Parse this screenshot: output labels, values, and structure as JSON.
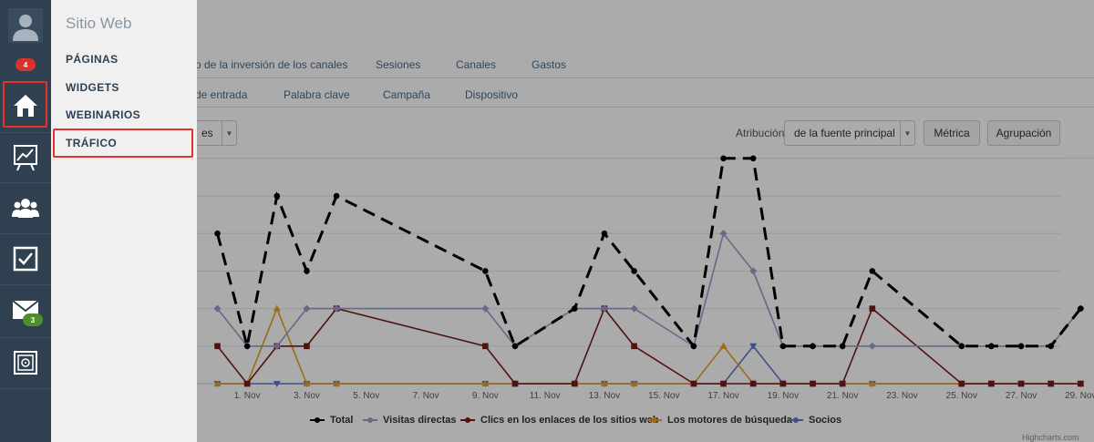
{
  "rail": {
    "badges": {
      "notifications": "4",
      "messages": "3"
    },
    "items": [
      "avatar",
      "home",
      "reports",
      "contacts",
      "tasks",
      "email",
      "vault"
    ]
  },
  "flyout": {
    "title": "Sitio Web",
    "items": [
      "PÁGINAS",
      "WIDGETS",
      "WEBINARIOS",
      "TRÁFICO"
    ],
    "highlighted": "TRÁFICO"
  },
  "tabs_row1": [
    "o de la inversión de los canales",
    "Sesiones",
    "Canales",
    "Gastos"
  ],
  "tabs_row2": [
    "de entrada",
    "Palabra clave",
    "Campaña",
    "Dispositivo"
  ],
  "controls": {
    "period_select": "es",
    "attribution_label": "Atribución",
    "attribution_value": "de la fuente principal",
    "metric_button": "Métrica",
    "grouping_button": "Agrupación"
  },
  "chart_data": {
    "type": "line",
    "x_labels": [
      "1. Nov",
      "3. Nov",
      "5. Nov",
      "7. Nov",
      "9. Nov",
      "11. Nov",
      "13. Nov",
      "15. Nov",
      "17. Nov",
      "19. Nov",
      "21. Nov",
      "23. Nov",
      "25. Nov",
      "27. Nov",
      "29. Nov"
    ],
    "grid": true,
    "legend_position": "bottom",
    "series": [
      {
        "name": "Total",
        "color": "#000000",
        "dash": true,
        "marker": "circle",
        "points": [
          [
            0,
            4
          ],
          [
            1,
            1
          ],
          [
            2,
            5
          ],
          [
            3,
            3
          ],
          [
            4,
            5
          ],
          [
            9,
            3
          ],
          [
            10,
            1
          ],
          [
            12,
            2
          ],
          [
            13,
            4
          ],
          [
            14,
            3
          ],
          [
            16,
            1
          ],
          [
            17,
            6
          ],
          [
            18,
            6
          ],
          [
            19,
            1
          ],
          [
            20,
            1
          ],
          [
            21,
            1
          ],
          [
            22,
            3
          ],
          [
            25,
            1
          ],
          [
            26,
            1
          ],
          [
            27,
            1
          ],
          [
            28,
            1
          ],
          [
            29,
            2
          ]
        ]
      },
      {
        "name": "Visitas directas",
        "color": "#9e9cce",
        "dash": false,
        "marker": "diamond",
        "points": [
          [
            0,
            2
          ],
          [
            1,
            1
          ],
          [
            2,
            1
          ],
          [
            3,
            2
          ],
          [
            4,
            2
          ],
          [
            9,
            2
          ],
          [
            10,
            1
          ],
          [
            12,
            2
          ],
          [
            13,
            2
          ],
          [
            14,
            2
          ],
          [
            16,
            1
          ],
          [
            17,
            4
          ],
          [
            18,
            3
          ],
          [
            19,
            1
          ],
          [
            20,
            1
          ],
          [
            21,
            1
          ],
          [
            22,
            1
          ],
          [
            25,
            1
          ],
          [
            26,
            1
          ],
          [
            27,
            1
          ],
          [
            28,
            1
          ],
          [
            29,
            2
          ]
        ]
      },
      {
        "name": "Clics en los enlaces de los sitios web",
        "color": "#7a1a1a",
        "dash": false,
        "marker": "square",
        "points": [
          [
            0,
            1
          ],
          [
            1,
            0
          ],
          [
            2,
            1
          ],
          [
            3,
            1
          ],
          [
            4,
            2
          ],
          [
            9,
            1
          ],
          [
            10,
            0
          ],
          [
            12,
            0
          ],
          [
            13,
            2
          ],
          [
            14,
            1
          ],
          [
            16,
            0
          ],
          [
            17,
            0
          ],
          [
            18,
            0
          ],
          [
            19,
            0
          ],
          [
            20,
            0
          ],
          [
            21,
            0
          ],
          [
            22,
            2
          ],
          [
            25,
            0
          ],
          [
            26,
            0
          ],
          [
            27,
            0
          ],
          [
            28,
            0
          ],
          [
            29,
            0
          ]
        ]
      },
      {
        "name": "Los motores de búsqueda",
        "color": "#e8a21a",
        "dash": false,
        "marker": "triangle",
        "points": [
          [
            0,
            0
          ],
          [
            1,
            0
          ],
          [
            2,
            2
          ],
          [
            3,
            0
          ],
          [
            4,
            0
          ],
          [
            9,
            0
          ],
          [
            10,
            0
          ],
          [
            12,
            0
          ],
          [
            13,
            0
          ],
          [
            14,
            0
          ],
          [
            16,
            0
          ],
          [
            17,
            1
          ],
          [
            18,
            0
          ],
          [
            19,
            0
          ],
          [
            20,
            0
          ],
          [
            21,
            0
          ],
          [
            22,
            0
          ],
          [
            25,
            0
          ],
          [
            26,
            0
          ],
          [
            27,
            0
          ],
          [
            28,
            0
          ],
          [
            29,
            0
          ]
        ]
      },
      {
        "name": "Socios",
        "color": "#5b79c8",
        "dash": false,
        "marker": "triangle-down",
        "points": [
          [
            0,
            0
          ],
          [
            1,
            0
          ],
          [
            2,
            0
          ],
          [
            3,
            0
          ],
          [
            4,
            0
          ],
          [
            9,
            0
          ],
          [
            10,
            0
          ],
          [
            12,
            0
          ],
          [
            13,
            0
          ],
          [
            14,
            0
          ],
          [
            16,
            0
          ],
          [
            17,
            0
          ],
          [
            18,
            1
          ],
          [
            19,
            0
          ],
          [
            20,
            0
          ],
          [
            21,
            0
          ],
          [
            22,
            0
          ],
          [
            25,
            0
          ],
          [
            26,
            0
          ],
          [
            27,
            0
          ],
          [
            28,
            0
          ],
          [
            29,
            0
          ]
        ]
      }
    ]
  },
  "credit": "Highcharts.com"
}
